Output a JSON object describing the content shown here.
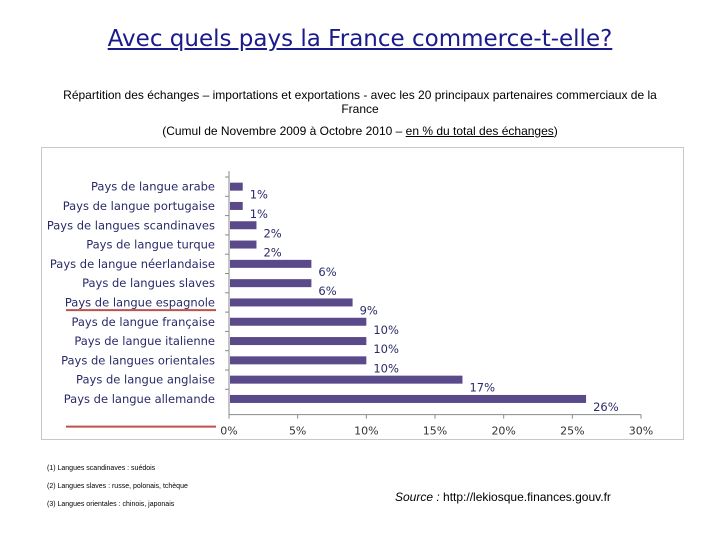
{
  "header": {
    "title": "Avec quels pays la France commerce-t-elle?",
    "subtitle": "Répartition des échanges – importations et exportations - avec les 20 principaux partenaires commerciaux de la France",
    "period_prefix": "(Cumul de Novembre 2009 à Octobre 2010 – ",
    "period_underlined": "en % du total des échanges",
    "period_suffix": ")"
  },
  "chart_data": {
    "type": "bar",
    "orientation": "horizontal",
    "categories": [
      "Pays de langue arabe",
      "Pays de langue portugaise",
      "Pays de langues scandinaves",
      "Pays de langue turque",
      "Pays de langue néerlandaise",
      "Pays de langues slaves",
      "Pays de langue espagnole",
      "Pays de langue française",
      "Pays de langue italienne",
      "Pays de langues orientales",
      "Pays de langue anglaise",
      "Pays de langue allemande"
    ],
    "values": [
      1,
      1,
      2,
      2,
      6,
      6,
      9,
      10,
      10,
      10,
      17,
      26
    ],
    "data_labels": [
      "1%",
      "1%",
      "2%",
      "2%",
      "6%",
      "6%",
      "9%",
      "10%",
      "10%",
      "10%",
      "17%",
      "26%"
    ],
    "xlim": [
      0,
      30
    ],
    "x_ticks": [
      "0%",
      "5%",
      "10%",
      "15%",
      "20%",
      "25%",
      "30%"
    ],
    "xlabel": "",
    "ylabel": "",
    "grid": false,
    "bar_color": "#5b4a8a",
    "marker_color": "#c0504d"
  },
  "notes": [
    "(1)  Langues scandinaves : suédois",
    "(2)  Langues slaves : russe, polonais, tchèque",
    "(3)  Langues orientales : chinois, japonais"
  ],
  "source": {
    "label": "Source : ",
    "url": "http://lekiosque.finances.gouv.fr"
  }
}
